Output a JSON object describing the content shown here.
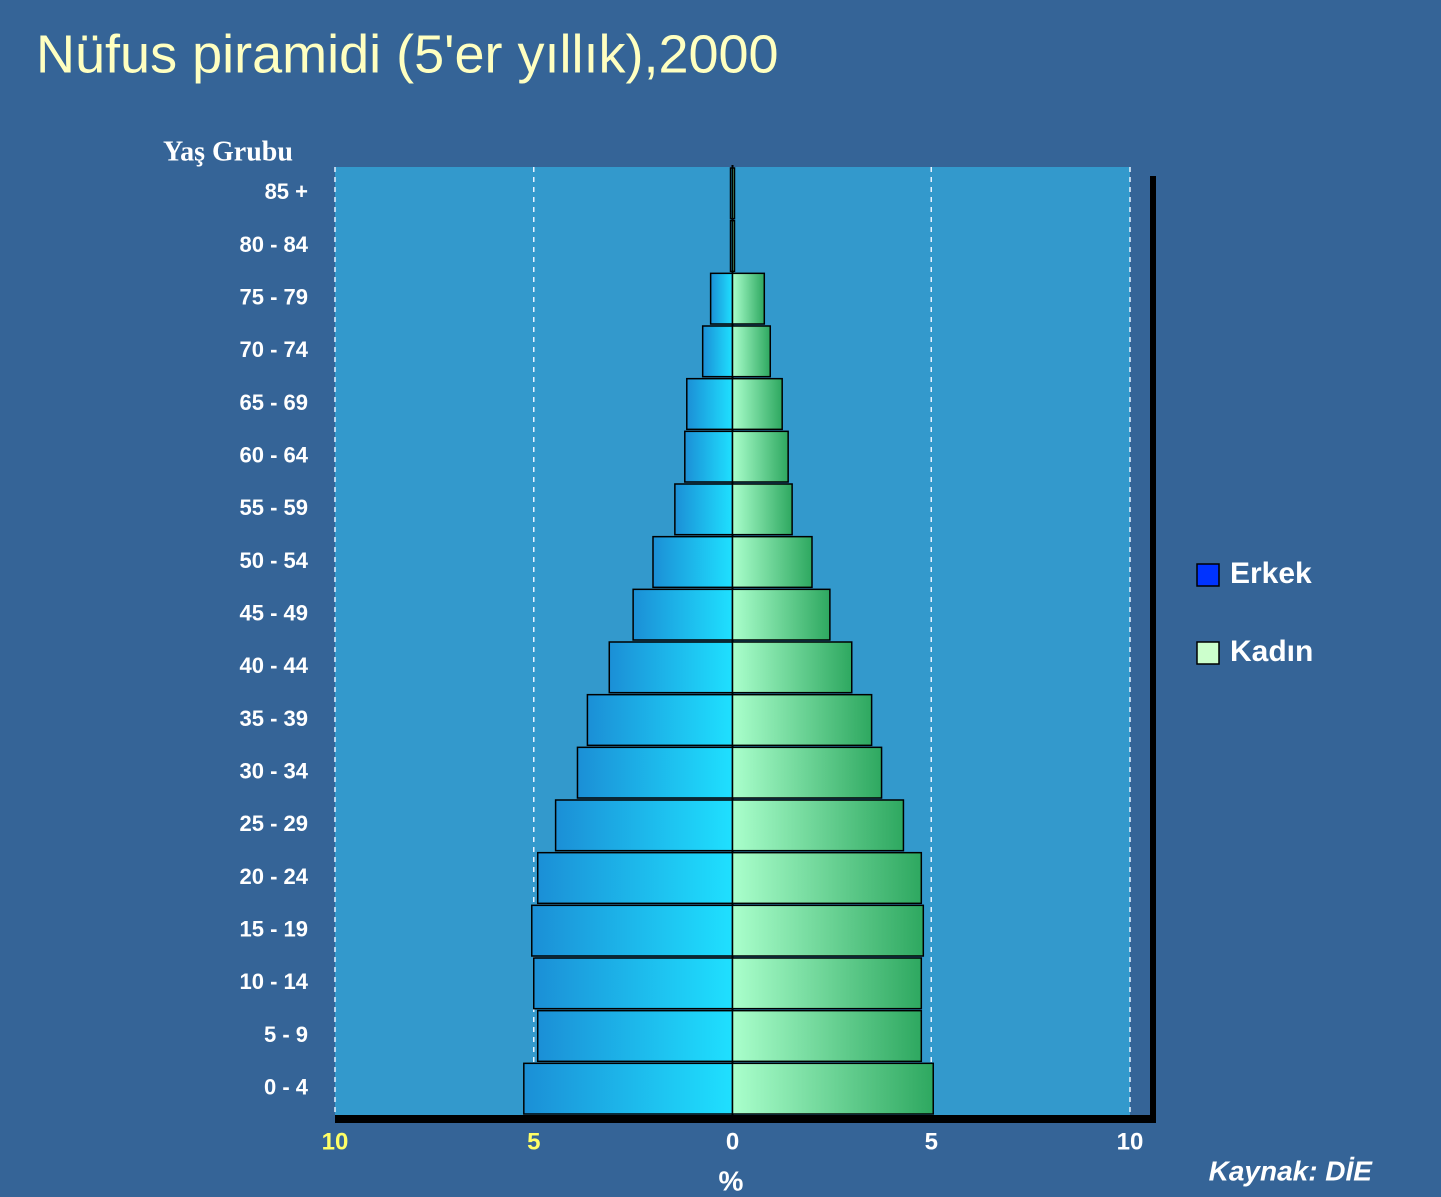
{
  "chart_data": {
    "type": "pyramid",
    "title": "Nüfus piramidi (5'er yıllık),2000",
    "y_axis_label": "Yaş Grubu",
    "x_axis_label": "%",
    "source": "Kaynak: DİE",
    "categories": [
      "0 - 4",
      "5 - 9",
      "10 - 14",
      "15 - 19",
      "20 - 24",
      "25 - 29",
      "30 - 34",
      "35 - 39",
      "40 - 44",
      "45 - 49",
      "50 - 54",
      "55 - 59",
      "60 - 64",
      "65 - 69",
      "70 - 74",
      "75 - 79",
      "80 - 84",
      "85 +"
    ],
    "series": [
      {
        "name": "Erkek",
        "color": "#0033ff",
        "side": "left",
        "values": [
          5.25,
          4.9,
          5.0,
          5.05,
          4.9,
          4.45,
          3.9,
          3.65,
          3.1,
          2.5,
          2.0,
          1.45,
          1.2,
          1.15,
          0.75,
          0.55,
          0.05,
          0.05
        ]
      },
      {
        "name": "Kadın",
        "color": "#ccffcc",
        "side": "right",
        "values": [
          5.05,
          4.75,
          4.75,
          4.8,
          4.75,
          4.3,
          3.75,
          3.5,
          3.0,
          2.45,
          2.0,
          1.5,
          1.4,
          1.25,
          0.95,
          0.8,
          0.05,
          0.05
        ]
      }
    ],
    "xlim": [
      -10,
      10
    ],
    "xticks": [
      {
        "value": -10,
        "label": "10"
      },
      {
        "value": -5,
        "label": "5"
      },
      0,
      5,
      10
    ],
    "grid": true,
    "legend": "right"
  }
}
